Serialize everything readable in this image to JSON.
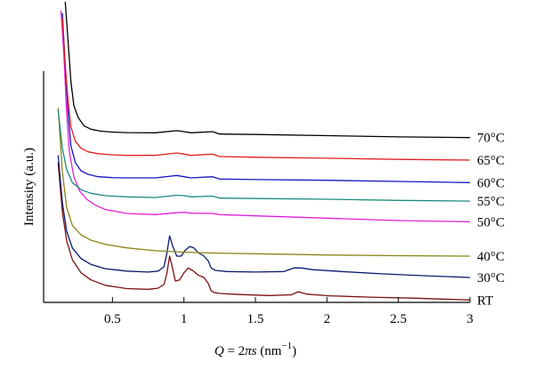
{
  "chart_data": {
    "type": "line",
    "title": "",
    "xlabel": "Q = 2πs (nm−1)",
    "xlabel_parts": {
      "left": "Q",
      "eq": " = 2",
      "pi": "π",
      "s": "s",
      "unit_open": " (nm",
      "sup": "−1",
      "unit_close": ")"
    },
    "ylabel": "Intensity (a.u.)",
    "xlim": [
      0.0,
      3.0
    ],
    "ylim": [
      0.0,
      12.0
    ],
    "x_ticks": [
      {
        "value": 0.5,
        "label": "0.5"
      },
      {
        "value": 1.0,
        "label": "1"
      },
      {
        "value": 1.5,
        "label": "1.5"
      },
      {
        "value": 2.0,
        "label": "2"
      },
      {
        "value": 2.5,
        "label": "2.5"
      },
      {
        "value": 3.0,
        "label": "3"
      }
    ],
    "y_ticks_shown": false,
    "grid": false,
    "legend": "labels at right end of each curve",
    "series": [
      {
        "name": "RT",
        "color": "#7a1010",
        "x": [
          0.12,
          0.15,
          0.18,
          0.22,
          0.28,
          0.35,
          0.45,
          0.6,
          0.75,
          0.82,
          0.86,
          0.88,
          0.9,
          0.92,
          0.94,
          0.97,
          1.0,
          1.03,
          1.06,
          1.1,
          1.14,
          1.17,
          1.19,
          1.21,
          1.25,
          1.4,
          1.6,
          1.75,
          1.8,
          1.86,
          2.0,
          2.3,
          2.6,
          3.0
        ],
        "y": [
          5.9,
          3.8,
          2.6,
          1.8,
          1.25,
          0.95,
          0.72,
          0.58,
          0.55,
          0.6,
          0.75,
          1.2,
          1.95,
          1.45,
          0.9,
          0.95,
          1.25,
          1.45,
          1.35,
          1.15,
          1.05,
          0.8,
          0.5,
          0.42,
          0.38,
          0.33,
          0.29,
          0.32,
          0.45,
          0.35,
          0.28,
          0.22,
          0.18,
          0.1
        ]
      },
      {
        "name": "30°C",
        "color": "#0a1a6e",
        "x": [
          0.12,
          0.15,
          0.18,
          0.22,
          0.28,
          0.35,
          0.45,
          0.6,
          0.75,
          0.82,
          0.86,
          0.88,
          0.9,
          0.92,
          0.95,
          0.98,
          1.01,
          1.04,
          1.07,
          1.1,
          1.14,
          1.17,
          1.19,
          1.22,
          1.3,
          1.5,
          1.7,
          1.77,
          1.82,
          1.9,
          2.1,
          2.4,
          2.7,
          3.0
        ],
        "y": [
          6.2,
          4.2,
          3.0,
          2.3,
          1.85,
          1.6,
          1.42,
          1.32,
          1.28,
          1.32,
          1.5,
          2.05,
          2.8,
          2.4,
          1.95,
          1.95,
          2.2,
          2.35,
          2.3,
          2.1,
          1.95,
          1.75,
          1.45,
          1.35,
          1.3,
          1.28,
          1.3,
          1.45,
          1.45,
          1.38,
          1.3,
          1.2,
          1.12,
          1.05
        ]
      },
      {
        "name": "40°C",
        "color": "#8a8418",
        "x": [
          0.12,
          0.15,
          0.18,
          0.22,
          0.28,
          0.35,
          0.45,
          0.6,
          0.8,
          1.0,
          1.2,
          1.5,
          2.0,
          2.5,
          3.0
        ],
        "y": [
          8.2,
          5.5,
          4.0,
          3.25,
          2.85,
          2.62,
          2.45,
          2.3,
          2.18,
          2.12,
          2.08,
          2.05,
          2.0,
          1.97,
          1.95
        ]
      },
      {
        "name": "50°C",
        "color": "#e020d8",
        "x": [
          0.14,
          0.16,
          0.18,
          0.2,
          0.23,
          0.27,
          0.32,
          0.38,
          0.45,
          0.6,
          0.8,
          0.95,
          1.0,
          1.05,
          1.2,
          1.25,
          1.5,
          2.0,
          2.5,
          3.0
        ],
        "y": [
          12.3,
          10.5,
          8.0,
          6.3,
          5.3,
          4.7,
          4.35,
          4.1,
          3.92,
          3.75,
          3.7,
          3.78,
          3.8,
          3.76,
          3.75,
          3.7,
          3.65,
          3.55,
          3.45,
          3.4
        ]
      },
      {
        "name": "55°C",
        "color": "#1a8a80",
        "x": [
          0.12,
          0.15,
          0.18,
          0.22,
          0.28,
          0.35,
          0.45,
          0.6,
          0.8,
          0.95,
          1.0,
          1.05,
          1.2,
          1.25,
          1.5,
          2.0,
          2.5,
          3.0
        ],
        "y": [
          8.1,
          6.5,
          5.6,
          5.05,
          4.75,
          4.6,
          4.5,
          4.45,
          4.42,
          4.52,
          4.5,
          4.45,
          4.48,
          4.4,
          4.38,
          4.35,
          4.3,
          4.27
        ]
      },
      {
        "name": "60°C",
        "color": "#1515c0",
        "x": [
          0.15,
          0.17,
          0.19,
          0.21,
          0.24,
          0.28,
          0.33,
          0.4,
          0.5,
          0.6,
          0.8,
          0.95,
          1.0,
          1.05,
          1.2,
          1.25,
          1.5,
          2.0,
          2.5,
          3.0
        ],
        "y": [
          12.2,
          10.0,
          8.0,
          6.6,
          5.9,
          5.55,
          5.4,
          5.3,
          5.26,
          5.25,
          5.25,
          5.35,
          5.3,
          5.25,
          5.3,
          5.2,
          5.18,
          5.15,
          5.1,
          5.05
        ]
      },
      {
        "name": "65°C",
        "color": "#e02020",
        "x": [
          0.15,
          0.17,
          0.19,
          0.21,
          0.24,
          0.28,
          0.33,
          0.4,
          0.5,
          0.6,
          0.8,
          0.95,
          1.0,
          1.05,
          1.2,
          1.25,
          1.5,
          2.0,
          2.5,
          3.0
        ],
        "y": [
          12.0,
          10.0,
          8.5,
          7.4,
          6.8,
          6.5,
          6.35,
          6.27,
          6.22,
          6.2,
          6.2,
          6.3,
          6.25,
          6.2,
          6.25,
          6.15,
          6.12,
          6.08,
          6.03,
          6.0
        ]
      },
      {
        "name": "70°C",
        "color": "#000000",
        "x": [
          0.17,
          0.19,
          0.21,
          0.23,
          0.26,
          0.3,
          0.35,
          0.42,
          0.5,
          0.6,
          0.8,
          0.95,
          1.0,
          1.05,
          1.2,
          1.25,
          1.5,
          2.0,
          2.5,
          3.0
        ],
        "y": [
          13.0,
          11.0,
          9.3,
          8.3,
          7.8,
          7.45,
          7.3,
          7.22,
          7.18,
          7.16,
          7.15,
          7.24,
          7.2,
          7.15,
          7.2,
          7.1,
          7.08,
          7.03,
          6.98,
          6.95
        ]
      }
    ]
  }
}
